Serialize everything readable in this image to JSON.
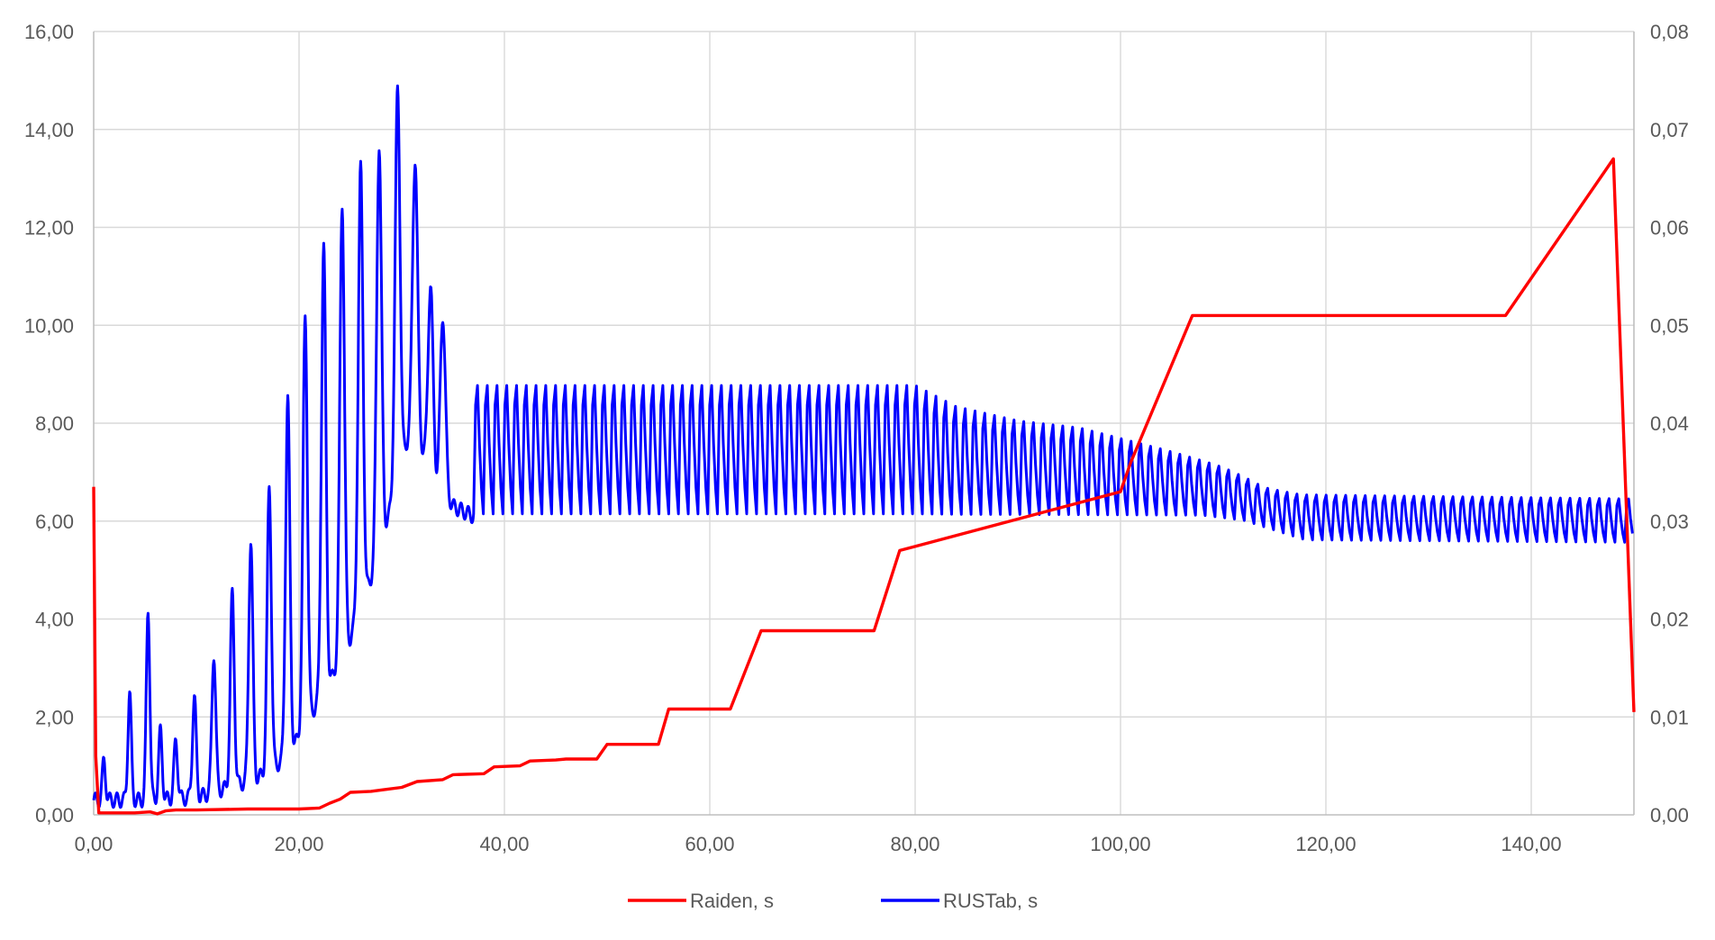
{
  "chart_data": {
    "type": "line",
    "title": "",
    "xlabel": "",
    "ylabel": "",
    "xlim": [
      0,
      150
    ],
    "ylim_left": [
      0,
      16
    ],
    "ylim_right": [
      0,
      0.08
    ],
    "grid": true,
    "legend_position": "bottom-center",
    "x_ticks": [
      "0,00",
      "20,00",
      "40,00",
      "60,00",
      "80,00",
      "100,00",
      "120,00",
      "140,00"
    ],
    "y_left_ticks": [
      "0,00",
      "2,00",
      "4,00",
      "6,00",
      "8,00",
      "10,00",
      "12,00",
      "14,00",
      "16,00"
    ],
    "y_right_ticks": [
      "0,00",
      "0,01",
      "0,02",
      "0,03",
      "0,04",
      "0,05",
      "0,06",
      "0,07",
      "0,08"
    ],
    "series": [
      {
        "name": "Raiden, s",
        "color": "#ff0000",
        "axis": "right",
        "points": [
          [
            0.0,
            0.0335
          ],
          [
            0.2,
            0.006
          ],
          [
            0.5,
            0.0002
          ],
          [
            2.0,
            0.0002
          ],
          [
            4.0,
            0.0002
          ],
          [
            5.5,
            0.0003
          ],
          [
            6.2,
            0.0001
          ],
          [
            7.0,
            0.0004
          ],
          [
            8.0,
            0.0005
          ],
          [
            10.0,
            0.0005
          ],
          [
            15.0,
            0.0006
          ],
          [
            20.0,
            0.0006
          ],
          [
            22.0,
            0.0007
          ],
          [
            23.0,
            0.0012
          ],
          [
            24.0,
            0.0016
          ],
          [
            25.0,
            0.0023
          ],
          [
            27.0,
            0.0024
          ],
          [
            28.5,
            0.0026
          ],
          [
            30.0,
            0.0028
          ],
          [
            31.5,
            0.0034
          ],
          [
            34.0,
            0.0036
          ],
          [
            35.0,
            0.0041
          ],
          [
            38.0,
            0.0042
          ],
          [
            39.0,
            0.0049
          ],
          [
            41.5,
            0.005
          ],
          [
            42.5,
            0.0055
          ],
          [
            45.0,
            0.0056
          ],
          [
            46.0,
            0.0057
          ],
          [
            49.0,
            0.0057
          ],
          [
            50.0,
            0.0072
          ],
          [
            55.0,
            0.0072
          ],
          [
            56.0,
            0.0108
          ],
          [
            62.0,
            0.0108
          ],
          [
            65.0,
            0.0188
          ],
          [
            76.0,
            0.0188
          ],
          [
            78.5,
            0.027
          ],
          [
            100.0,
            0.033
          ],
          [
            101.0,
            0.036
          ],
          [
            107.0,
            0.051
          ],
          [
            137.5,
            0.051
          ],
          [
            148.0,
            0.067
          ],
          [
            150.0,
            0.0105
          ]
        ]
      },
      {
        "name": "RUSTab, s",
        "color": "#0000ff",
        "axis": "left"
      }
    ]
  }
}
